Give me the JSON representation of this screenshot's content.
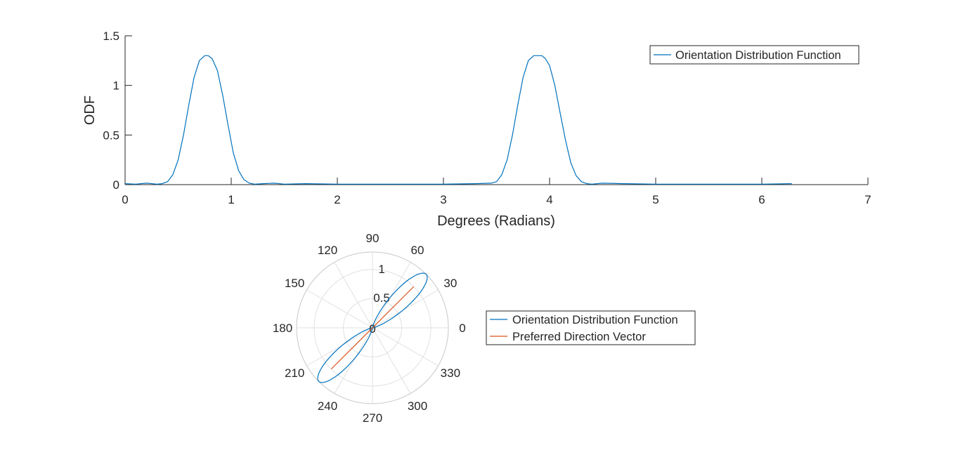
{
  "chart_data": [
    {
      "type": "line",
      "xlabel": "Degrees (Radians)",
      "ylabel": "ODF",
      "xlim": [
        0,
        7
      ],
      "ylim": [
        0,
        1.5
      ],
      "xticks": [
        "0",
        "1",
        "2",
        "3",
        "4",
        "5",
        "6",
        "7"
      ],
      "yticks": [
        "0",
        "0.5",
        "1",
        "1.5"
      ],
      "grid": false,
      "legend_position": "top-right",
      "series": [
        {
          "name": "Orientation Distribution Function",
          "color": "#0072BD",
          "x": [
            0,
            0.1,
            0.2,
            0.3,
            0.35,
            0.4,
            0.45,
            0.5,
            0.55,
            0.6,
            0.65,
            0.7,
            0.75,
            0.785,
            0.82,
            0.87,
            0.92,
            0.97,
            1.02,
            1.07,
            1.12,
            1.17,
            1.22,
            1.3,
            1.4,
            1.5,
            1.7,
            2.0,
            2.5,
            3.0,
            3.3,
            3.45,
            3.5,
            3.55,
            3.6,
            3.65,
            3.7,
            3.75,
            3.8,
            3.85,
            3.9,
            3.927,
            3.96,
            4.0,
            4.05,
            4.1,
            4.15,
            4.2,
            4.25,
            4.3,
            4.35,
            4.4,
            4.5,
            4.7,
            5.0,
            5.5,
            6.0,
            6.283
          ],
          "y": [
            0.01,
            0.005,
            0.015,
            0.005,
            0.01,
            0.03,
            0.1,
            0.25,
            0.5,
            0.8,
            1.08,
            1.25,
            1.3,
            1.3,
            1.27,
            1.15,
            0.9,
            0.6,
            0.32,
            0.14,
            0.05,
            0.015,
            0.005,
            0.01,
            0.015,
            0.005,
            0.01,
            0.005,
            0.005,
            0.005,
            0.01,
            0.015,
            0.03,
            0.1,
            0.25,
            0.5,
            0.8,
            1.08,
            1.25,
            1.3,
            1.3,
            1.3,
            1.27,
            1.2,
            1.0,
            0.72,
            0.45,
            0.22,
            0.09,
            0.03,
            0.01,
            0.005,
            0.015,
            0.01,
            0.005,
            0.005,
            0.005,
            0.01
          ]
        }
      ]
    },
    {
      "type": "polar",
      "theta_ticks": [
        "0",
        "30",
        "60",
        "90",
        "120",
        "150",
        "180",
        "210",
        "240",
        "270",
        "300",
        "330"
      ],
      "r_ticks": [
        "0",
        "0.5",
        "1"
      ],
      "rlim": [
        0,
        1.3
      ],
      "theta_unit": "degrees",
      "legend_position": "right",
      "series": [
        {
          "name": "Orientation Distribution Function",
          "color": "#0072BD",
          "peak_angles_deg": [
            45,
            225
          ],
          "peak_value": 1.3
        },
        {
          "name": "Preferred Direction Vector",
          "color": "#D95319",
          "theta_deg": [
            45,
            225
          ],
          "r": [
            1,
            1
          ]
        }
      ]
    }
  ]
}
